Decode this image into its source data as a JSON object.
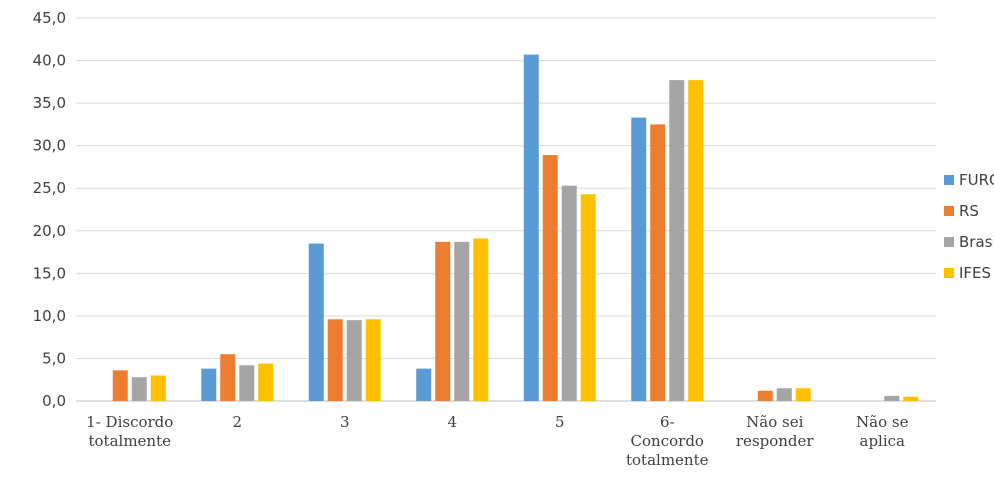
{
  "chart_data": {
    "type": "bar",
    "categories": [
      [
        "1- Discordo",
        "totalmente"
      ],
      [
        "2"
      ],
      [
        "3"
      ],
      [
        "4"
      ],
      [
        "5"
      ],
      [
        "6-",
        "Concordo",
        "totalmente"
      ],
      [
        "Não sei",
        "responder"
      ],
      [
        "Não se",
        "aplica"
      ]
    ],
    "series": [
      {
        "name": "FURG",
        "color": "#5b9bd5",
        "values": [
          0,
          3.8,
          18.5,
          3.8,
          40.7,
          33.3,
          0,
          0
        ]
      },
      {
        "name": "RS",
        "color": "#ed7d31",
        "values": [
          3.6,
          5.5,
          9.6,
          18.7,
          28.9,
          32.5,
          1.2,
          0
        ]
      },
      {
        "name": "Brasil",
        "color": "#a5a5a5",
        "values": [
          2.8,
          4.2,
          9.5,
          18.7,
          25.3,
          37.7,
          1.5,
          0.6
        ]
      },
      {
        "name": "IFES",
        "color": "#ffc000",
        "values": [
          3.0,
          4.4,
          9.6,
          19.1,
          24.3,
          37.7,
          1.5,
          0.5
        ]
      }
    ],
    "yticks": [
      "0,0",
      "5,0",
      "10,0",
      "15,0",
      "20,0",
      "25,0",
      "30,0",
      "35,0",
      "40,0",
      "45,0"
    ],
    "ylim": [
      0,
      45
    ],
    "ystep": 5,
    "grid": true,
    "legend_position": "right"
  }
}
